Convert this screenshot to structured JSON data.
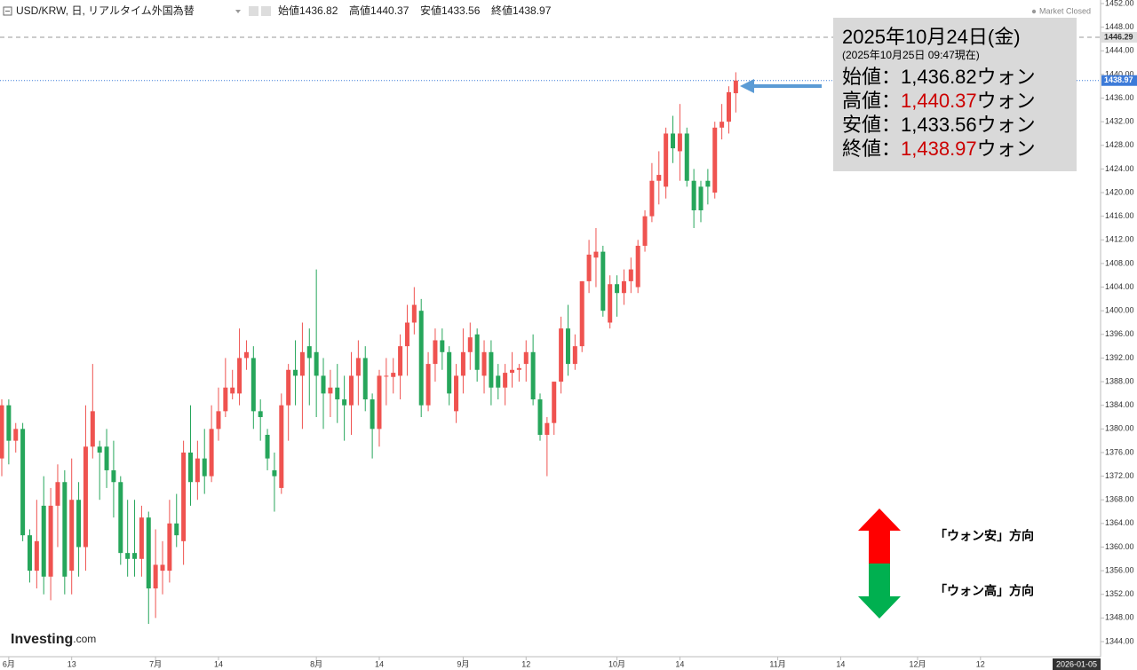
{
  "chart_data": {
    "type": "candlestick",
    "title": "USD/KRW, 日, リアルタイム外国為替",
    "header_labels": {
      "open": "始値",
      "high": "高値",
      "low": "安値",
      "close": "終値"
    },
    "status": "Market Closed",
    "up_color": "#ef5350",
    "down_color": "#26a65b",
    "categories": [
      null,
      "6月",
      null,
      null,
      null,
      null,
      null,
      null,
      null,
      null,
      "13",
      null,
      null,
      null,
      null,
      null,
      null,
      null,
      null,
      null,
      null,
      null,
      "7月",
      null,
      null,
      null,
      null,
      null,
      null,
      null,
      null,
      "14",
      null,
      null,
      null,
      null,
      null,
      null,
      null,
      null,
      null,
      null,
      null,
      null,
      null,
      "8月",
      null,
      null,
      null,
      null,
      null,
      null,
      null,
      null,
      "14",
      null,
      null,
      null,
      null,
      null,
      null,
      null,
      null,
      null,
      null,
      null,
      "9月",
      null,
      null,
      null,
      null,
      null,
      null,
      null,
      null,
      "12",
      null,
      null,
      null,
      null,
      null,
      null,
      null,
      null,
      null,
      null,
      null,
      null,
      "10月",
      null,
      null,
      null,
      null,
      null,
      null,
      null,
      null,
      "14",
      null,
      null,
      null,
      null,
      null,
      null,
      null,
      null,
      null,
      null,
      null,
      null,
      null,
      "11月",
      null,
      null,
      null,
      null,
      null,
      null,
      null,
      null,
      "14",
      null,
      null,
      null,
      null,
      null,
      null,
      null,
      null,
      null,
      null,
      "12月",
      null,
      null,
      null,
      null,
      null,
      null,
      null,
      null,
      "12",
      null,
      null,
      null,
      null,
      null,
      null,
      null,
      null,
      null,
      null,
      null,
      null,
      null,
      null,
      null,
      "2026-01-05"
    ],
    "open": [
      1375,
      1384,
      1378,
      1380,
      1362,
      1356,
      1367,
      1355,
      1367,
      1371,
      1356,
      1368,
      1360,
      1377,
      1377,
      1377,
      1373,
      1371,
      1359,
      1359,
      1358,
      1365,
      1353,
      1356,
      1356,
      1364,
      1361,
      1376,
      1371,
      1375,
      1372,
      1380,
      1383,
      1386,
      1386,
      1392,
      1392,
      1383,
      1379,
      1373,
      1370,
      1384,
      1390,
      1389,
      1394,
      1393,
      1389,
      1386,
      1387,
      1385,
      1384,
      1389,
      1392,
      1385,
      1380,
      1389,
      1388.8,
      1389,
      1394,
      1398,
      1400,
      1384,
      1391,
      1395,
      1393,
      1383,
      1389,
      1393,
      1396,
      1389,
      1393,
      1389,
      1387,
      1389.5,
      1390,
      1391,
      1393,
      1385,
      1379,
      1381,
      1388,
      1397,
      1391,
      1394,
      1405,
      1409,
      1410,
      1398,
      1404.5,
      1403,
      1405,
      1404,
      1411,
      1416,
      1422,
      1421,
      1430,
      1427,
      1430,
      1422,
      1421,
      1422,
      1420,
      1431,
      1432,
      1436.82,
      null,
      null,
      null,
      null,
      null,
      null,
      null,
      null,
      null,
      null,
      null,
      null,
      null,
      null,
      null,
      null,
      null,
      null,
      null,
      null,
      null,
      null,
      null,
      null,
      null,
      null,
      null,
      null,
      null,
      null,
      null,
      null,
      null,
      null,
      null,
      null,
      null,
      null,
      null,
      null,
      null,
      null,
      null,
      null,
      null,
      null,
      null,
      null,
      null,
      null,
      null
    ],
    "high": [
      1385,
      1385,
      1381,
      1381,
      1363,
      1368,
      1372,
      1370,
      1374,
      1373,
      1375,
      1371,
      1384,
      1391,
      1378,
      1380,
      1378,
      1372,
      1368,
      1368,
      1367,
      1366,
      1363,
      1361,
      1368,
      1369,
      1378,
      1384,
      1378,
      1380,
      1384,
      1387,
      1392,
      1390,
      1397,
      1395,
      1394,
      1385,
      1380,
      1376,
      1386,
      1391,
      1395,
      1398,
      1397,
      1407,
      1392,
      1390,
      1391,
      1389,
      1393,
      1395,
      1394,
      1386,
      1390,
      1392,
      1392,
      1396,
      1401,
      1404,
      1402,
      1393,
      1397,
      1397,
      1394,
      1391,
      1397,
      1398,
      1397,
      1395,
      1395,
      1391,
      1391,
      1393,
      1391,
      1395,
      1396,
      1386,
      1382,
      1388,
      1399,
      1401,
      1396,
      1405,
      1412,
      1414,
      1411,
      1406,
      1406,
      1407,
      1409,
      1412,
      1417,
      1425,
      1427,
      1431,
      1433,
      1435,
      1431,
      1424,
      1422,
      1424,
      1432,
      1435,
      1438,
      1440.37,
      null,
      null,
      null,
      null,
      null,
      null,
      null,
      null,
      null,
      null,
      null,
      null,
      null,
      null,
      null,
      null,
      null,
      null,
      null,
      null,
      null,
      null,
      null,
      null,
      null,
      null,
      null,
      null,
      null,
      null,
      null,
      null,
      null,
      null,
      null,
      null,
      null,
      null,
      null,
      null,
      null,
      null,
      null,
      null,
      null,
      null,
      null,
      null,
      null,
      null,
      null
    ],
    "low": [
      1372,
      1374,
      1376,
      1361,
      1354,
      1353,
      1352,
      1351,
      1360,
      1352,
      1352,
      1355,
      1356,
      1375,
      1368,
      1370,
      1365,
      1357,
      1355,
      1355,
      1355,
      1347,
      1348,
      1352,
      1354,
      1360,
      1357,
      1367,
      1368,
      1369,
      1371,
      1378,
      1382,
      1385,
      1384,
      1390,
      1380,
      1378,
      1373,
      1366,
      1369,
      1378,
      1384,
      1380,
      1384,
      1382,
      1380,
      1382,
      1381,
      1378,
      1379,
      1384,
      1383,
      1375,
      1377,
      1384,
      1386,
      1385,
      1389,
      1396,
      1382,
      1383,
      1388,
      1390,
      1384,
      1381,
      1386,
      1390,
      1388,
      1386,
      1384,
      1385,
      1384,
      1387,
      1388,
      1388,
      1384,
      1378,
      1372,
      1379,
      1386,
      1389,
      1390,
      1393,
      1403,
      1404,
      1399,
      1397,
      1399,
      1401,
      1403,
      1403,
      1410,
      1415,
      1418,
      1419,
      1425,
      1422,
      1421,
      1414,
      1415,
      1418,
      1419,
      1429,
      1430,
      1433.56,
      null,
      null,
      null,
      null,
      null,
      null,
      null,
      null,
      null,
      null,
      null,
      null,
      null,
      null,
      null,
      null,
      null,
      null,
      null,
      null,
      null,
      null,
      null,
      null,
      null,
      null,
      null,
      null,
      null,
      null,
      null,
      null,
      null,
      null,
      null,
      null,
      null,
      null,
      null,
      null,
      null,
      null,
      null,
      null,
      null,
      null,
      null,
      null,
      null,
      null,
      null
    ],
    "close": [
      1384,
      1378,
      1380,
      1362,
      1356,
      1361,
      1355,
      1367,
      1371,
      1355,
      1368,
      1360,
      1377,
      1383,
      1376,
      1373,
      1371,
      1359,
      1358,
      1358,
      1365,
      1353,
      1357,
      1357,
      1364,
      1362,
      1376,
      1371,
      1375,
      1372,
      1380,
      1383,
      1387,
      1387,
      1392,
      1393,
      1383,
      1382,
      1375,
      1372,
      1384,
      1390,
      1389,
      1393,
      1392,
      1389,
      1386,
      1387,
      1385,
      1384,
      1389,
      1392,
      1385,
      1380,
      1389,
      1389,
      1389.5,
      1394,
      1398,
      1401,
      1384,
      1391,
      1395,
      1393,
      1386,
      1389,
      1393,
      1395.5,
      1390,
      1393,
      1387,
      1387,
      1389.5,
      1390,
      1390.3,
      1393,
      1385,
      1379,
      1381,
      1388,
      1397,
      1391,
      1394,
      1405,
      1409.5,
      1410,
      1400,
      1404.5,
      1403,
      1405,
      1407,
      1411,
      1416,
      1422,
      1423,
      1430,
      1427.5,
      1430,
      1422,
      1417,
      1417,
      1421,
      1431,
      1432,
      1437,
      1438.97,
      null,
      null,
      null,
      null,
      null,
      null,
      null,
      null,
      null,
      null,
      null,
      null,
      null,
      null,
      null,
      null,
      null,
      null,
      null,
      null,
      null,
      null,
      null,
      null,
      null,
      null,
      null,
      null,
      null,
      null,
      null,
      null,
      null,
      null,
      null,
      null,
      null,
      null,
      null,
      null,
      null,
      null,
      null,
      null,
      null,
      null,
      null,
      null,
      null,
      null,
      null
    ],
    "ylim": [
      1344,
      1452
    ],
    "yticks": [
      {
        "value": 1344,
        "label": "1344.00"
      },
      {
        "value": 1348,
        "label": "1348.00"
      },
      {
        "value": 1352,
        "label": "1352.00"
      },
      {
        "value": 1356,
        "label": "1356.00"
      },
      {
        "value": 1360,
        "label": "1360.00"
      },
      {
        "value": 1364,
        "label": "1364.00"
      },
      {
        "value": 1368,
        "label": "1368.00"
      },
      {
        "value": 1372,
        "label": "1372.00"
      },
      {
        "value": 1376,
        "label": "1376.00"
      },
      {
        "value": 1380,
        "label": "1380.00"
      },
      {
        "value": 1384,
        "label": "1384.00"
      },
      {
        "value": 1388,
        "label": "1388.00"
      },
      {
        "value": 1392,
        "label": "1392.00"
      },
      {
        "value": 1396,
        "label": "1396.00"
      },
      {
        "value": 1400,
        "label": "1400.00"
      },
      {
        "value": 1404,
        "label": "1404.00"
      },
      {
        "value": 1408,
        "label": "1408.00"
      },
      {
        "value": 1412,
        "label": "1412.00"
      },
      {
        "value": 1416,
        "label": "1416.00"
      },
      {
        "value": 1420,
        "label": "1420.00"
      },
      {
        "value": 1424,
        "label": "1424.00"
      },
      {
        "value": 1428,
        "label": "1428.00"
      },
      {
        "value": 1432,
        "label": "1432.00"
      },
      {
        "value": 1436,
        "label": "1436.00"
      },
      {
        "value": 1440,
        "label": "1440.00"
      },
      {
        "value": 1444,
        "label": "1444.00"
      },
      {
        "value": 1448,
        "label": "1448.00"
      },
      {
        "value": 1452,
        "label": "1452.00"
      }
    ],
    "grid": false,
    "price_line": {
      "value": 1446.29,
      "color": "#999999"
    },
    "last_price_color": "#3d7bd9",
    "info_box": {
      "date": "2025年10月24日(金)",
      "as_of": "(2025年10月25日 09:47現在)",
      "rows": [
        {
          "label": "始値：",
          "value": "1,436.82",
          "unit": "ウォン",
          "color": "#000000"
        },
        {
          "label": "高値：",
          "value": "1,440.37",
          "unit": "ウォン",
          "color": "#cc0000"
        },
        {
          "label": "安値：",
          "value": "1,433.56",
          "unit": "ウォン",
          "color": "#000000"
        },
        {
          "label": "終値：",
          "value": "1,438.97",
          "unit": "ウォン",
          "color": "#cc0000"
        }
      ]
    },
    "direction": {
      "up": "「ウォン安」方向",
      "down": "「ウォン高」方向"
    },
    "brand": "Investing",
    "brand_suffix": ".com"
  }
}
